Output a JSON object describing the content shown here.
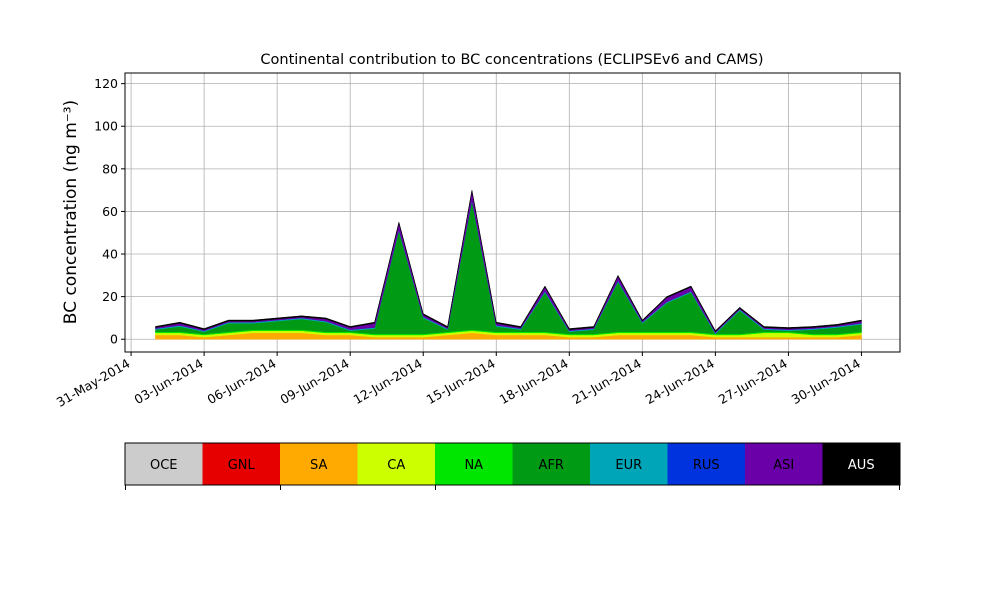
{
  "chart_data": {
    "type": "stacked_area",
    "title": "Continental contribution to BC concentrations (ECLIPSEv6 and CAMS)",
    "y_label": "BC concentration (ng m⁻³)",
    "x": [
      "2014-06-01",
      "2014-06-02",
      "2014-06-03",
      "2014-06-04",
      "2014-06-05",
      "2014-06-06",
      "2014-06-07",
      "2014-06-08",
      "2014-06-09",
      "2014-06-10",
      "2014-06-11",
      "2014-06-12",
      "2014-06-13",
      "2014-06-14",
      "2014-06-15",
      "2014-06-16",
      "2014-06-17",
      "2014-06-18",
      "2014-06-19",
      "2014-06-20",
      "2014-06-21",
      "2014-06-22",
      "2014-06-23",
      "2014-06-24",
      "2014-06-25",
      "2014-06-26",
      "2014-06-27",
      "2014-06-28",
      "2014-06-29",
      "2014-06-30"
    ],
    "xlim": [
      "2014-05-30T18:00",
      "2014-07-01T14:00"
    ],
    "xticks": [
      {
        "value": "2014-05-31",
        "label": "31-May-2014"
      },
      {
        "value": "2014-06-03",
        "label": "03-Jun-2014"
      },
      {
        "value": "2014-06-06",
        "label": "06-Jun-2014"
      },
      {
        "value": "2014-06-09",
        "label": "09-Jun-2014"
      },
      {
        "value": "2014-06-12",
        "label": "12-Jun-2014"
      },
      {
        "value": "2014-06-15",
        "label": "15-Jun-2014"
      },
      {
        "value": "2014-06-18",
        "label": "18-Jun-2014"
      },
      {
        "value": "2014-06-21",
        "label": "21-Jun-2014"
      },
      {
        "value": "2014-06-24",
        "label": "24-Jun-2014"
      },
      {
        "value": "2014-06-27",
        "label": "27-Jun-2014"
      },
      {
        "value": "2014-06-30",
        "label": "30-Jun-2014"
      }
    ],
    "ylim": [
      -6,
      125
    ],
    "yticks": [
      0,
      20,
      40,
      60,
      80,
      100,
      120
    ],
    "grid": true,
    "series": [
      {
        "name": "OCE",
        "color": "#cccccc",
        "values": [
          0,
          0,
          0,
          0,
          0,
          0,
          0,
          0,
          0,
          0,
          0,
          0,
          0,
          0,
          0,
          0,
          0,
          0,
          0,
          0,
          0,
          0,
          0,
          0,
          0,
          0,
          0,
          0,
          0,
          0
        ]
      },
      {
        "name": "GNL",
        "color": "#e60000",
        "values": [
          0,
          0,
          0,
          0,
          0,
          0,
          0,
          0,
          0,
          0,
          0,
          0,
          0,
          0,
          0,
          0,
          0,
          0,
          0,
          0,
          0,
          0,
          0,
          0,
          0,
          0,
          0,
          0,
          0,
          0
        ]
      },
      {
        "name": "SA",
        "color": "#ffaa00",
        "values": [
          2,
          2,
          1,
          2,
          3,
          3,
          3,
          2,
          2,
          1,
          1,
          1,
          2,
          3,
          2,
          2,
          2,
          1,
          1,
          2,
          2,
          2,
          2,
          1,
          1,
          1,
          1,
          1,
          1,
          2
        ]
      },
      {
        "name": "CA",
        "color": "#ccff00",
        "values": [
          1,
          1,
          1,
          1,
          1,
          1,
          1,
          1,
          1,
          1,
          1,
          1,
          1,
          1,
          1,
          1,
          1,
          1,
          1,
          1,
          1,
          1,
          1,
          1,
          1,
          2,
          2,
          1,
          1,
          1
        ]
      },
      {
        "name": "NA",
        "color": "#00e600",
        "values": [
          0.5,
          0.5,
          0.5,
          0.5,
          0.5,
          0.5,
          0.5,
          0.5,
          0.5,
          0.5,
          0.5,
          0.5,
          0.5,
          0.5,
          0.5,
          0.5,
          0.5,
          0.5,
          0.5,
          0.5,
          0.5,
          0.5,
          0.5,
          0.5,
          0.5,
          0.5,
          0.5,
          0.5,
          0.5,
          0.5
        ]
      },
      {
        "name": "AFR",
        "color": "#009a14",
        "values": [
          1,
          2.5,
          1,
          4,
          3,
          4,
          5,
          4.5,
          0.5,
          2.5,
          48.5,
          7.5,
          1,
          60.5,
          2.5,
          1,
          18.5,
          1,
          2,
          23.5,
          4,
          13.5,
          18.5,
          0,
          11,
          1,
          0.5,
          2,
          3,
          3.5
        ]
      },
      {
        "name": "EUR",
        "color": "#00a6b8",
        "values": [
          0.5,
          0.5,
          0.5,
          0.5,
          0.5,
          0.5,
          0.5,
          0.5,
          0.5,
          0.5,
          0.5,
          0.5,
          0.5,
          0.5,
          0.5,
          0.5,
          0.5,
          0.5,
          0.5,
          0.5,
          0.5,
          0.5,
          0.5,
          0.5,
          0.5,
          0.5,
          0.5,
          0.5,
          0.5,
          0.5
        ]
      },
      {
        "name": "RUS",
        "color": "#0033dd",
        "values": [
          0,
          0,
          0,
          0,
          0,
          0,
          0,
          0,
          0,
          0,
          0,
          0,
          0,
          0,
          0,
          0,
          0,
          0,
          0,
          0,
          0,
          0,
          0,
          0,
          0,
          0,
          0,
          0,
          0,
          0
        ]
      },
      {
        "name": "ASI",
        "color": "#6a00a8",
        "values": [
          0.5,
          1,
          0.5,
          0.5,
          0.5,
          0.5,
          0.5,
          1,
          1,
          2,
          3,
          1,
          0.5,
          4,
          1,
          0.5,
          2,
          0.5,
          0.5,
          2,
          0.5,
          2,
          2,
          0.5,
          0.5,
          0.5,
          0.5,
          0.5,
          0.5,
          1
        ]
      },
      {
        "name": "AUS",
        "color": "#000000",
        "values": [
          0.5,
          0.5,
          0.5,
          0.5,
          0.5,
          0.5,
          0.5,
          0.5,
          0.5,
          0.5,
          0.5,
          0.5,
          0.5,
          0.5,
          0.5,
          0.5,
          0.5,
          0.5,
          0.5,
          0.5,
          0.5,
          0.5,
          0.5,
          0.5,
          0.5,
          0.5,
          0.5,
          0.5,
          0.5,
          0.5
        ]
      }
    ]
  }
}
